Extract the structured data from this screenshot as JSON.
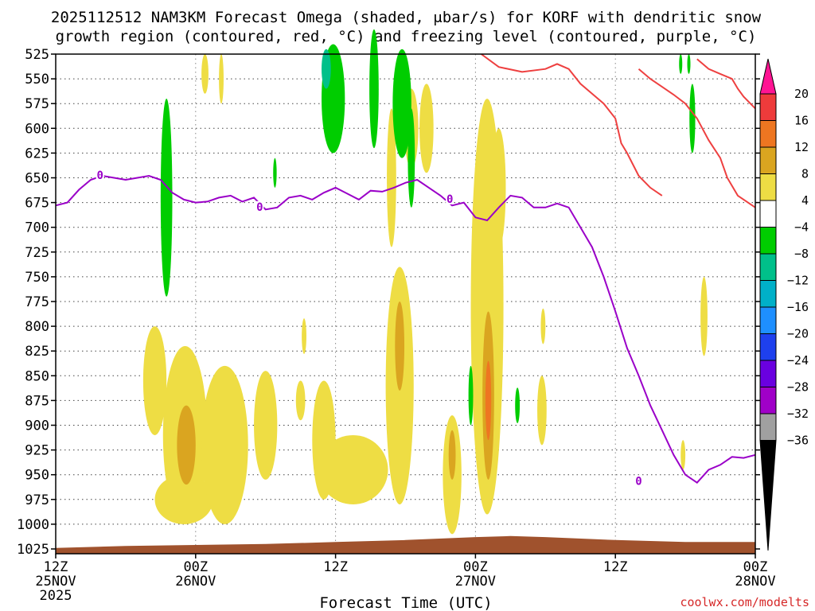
{
  "chart_data": {
    "type": "heatmap",
    "title_line1": "2025112512 NAM3KM Forecast Omega (shaded, μbar/s) for KORF with dendritic snow",
    "title_line2": "growth region (contoured, red, °C) and freezing level (contoured, purple, °C)",
    "xlabel": "Forecast Time (UTC)",
    "credit": "coolwx.com/modelts",
    "x_ticks": [
      {
        "hour": 0,
        "label": "12Z",
        "date": "25NOV",
        "year": "2025"
      },
      {
        "hour": 12,
        "label": "00Z",
        "date": "26NOV",
        "year": ""
      },
      {
        "hour": 24,
        "label": "12Z",
        "date": "",
        "year": ""
      },
      {
        "hour": 36,
        "label": "00Z",
        "date": "27NOV",
        "year": ""
      },
      {
        "hour": 48,
        "label": "12Z",
        "date": "",
        "year": ""
      },
      {
        "hour": 60,
        "label": "00Z",
        "date": "28NOV",
        "year": ""
      }
    ],
    "y_ticks": [
      525,
      550,
      575,
      600,
      625,
      650,
      675,
      700,
      725,
      750,
      775,
      800,
      825,
      850,
      875,
      900,
      925,
      950,
      975,
      1000,
      1025
    ],
    "x_range": [
      0,
      60
    ],
    "y_range_hpa": [
      525,
      1030
    ],
    "colorbar": {
      "labels": [
        "20",
        "16",
        "12",
        "8",
        "4",
        "−4",
        "−8",
        "−12",
        "−16",
        "−20",
        "−24",
        "−28",
        "−32",
        "−36"
      ],
      "colors": [
        "#ff1493",
        "#ee3b3b",
        "#ee7621",
        "#daa520",
        "#eedd44",
        "#ffffff",
        "#00cd00",
        "#00c08a",
        "#00b0c8",
        "#1e8fff",
        "#1e40ee",
        "#6a00e0",
        "#a000c8",
        "#a0a0a0",
        "#000000"
      ]
    },
    "contour_freezing_level_label": "0",
    "freezing_level_0C": [
      [
        0,
        678
      ],
      [
        1,
        675
      ],
      [
        2,
        662
      ],
      [
        3,
        652
      ],
      [
        4,
        648
      ],
      [
        5,
        650
      ],
      [
        6,
        652
      ],
      [
        7,
        650
      ],
      [
        8,
        648
      ],
      [
        9,
        652
      ],
      [
        10,
        665
      ],
      [
        11,
        672
      ],
      [
        12,
        675
      ],
      [
        13,
        674
      ],
      [
        14,
        670
      ],
      [
        15,
        668
      ],
      [
        16,
        674
      ],
      [
        17,
        670
      ],
      [
        18,
        682
      ],
      [
        19,
        680
      ],
      [
        20,
        670
      ],
      [
        21,
        668
      ],
      [
        22,
        672
      ],
      [
        23,
        665
      ],
      [
        24,
        660
      ],
      [
        25,
        666
      ],
      [
        26,
        672
      ],
      [
        27,
        663
      ],
      [
        28,
        664
      ],
      [
        29,
        660
      ],
      [
        30,
        655
      ],
      [
        31,
        652
      ],
      [
        32,
        660
      ],
      [
        33,
        668
      ],
      [
        34,
        678
      ],
      [
        35,
        675
      ],
      [
        36,
        690
      ],
      [
        37,
        693
      ],
      [
        38,
        680
      ],
      [
        39,
        668
      ],
      [
        40,
        670
      ],
      [
        41,
        680
      ],
      [
        42,
        680
      ],
      [
        43,
        676
      ],
      [
        44,
        680
      ],
      [
        45,
        700
      ],
      [
        46,
        720
      ],
      [
        47,
        750
      ],
      [
        48,
        785
      ],
      [
        49,
        822
      ],
      [
        50,
        850
      ],
      [
        51,
        880
      ],
      [
        52,
        905
      ],
      [
        53,
        930
      ],
      [
        54,
        950
      ],
      [
        55,
        958
      ],
      [
        56,
        945
      ],
      [
        57,
        940
      ],
      [
        58,
        932
      ],
      [
        59,
        933
      ],
      [
        60,
        930
      ]
    ],
    "dgz_contours_red": [
      [
        [
          36.5,
          525
        ],
        [
          38,
          538
        ],
        [
          40,
          543
        ],
        [
          42,
          540
        ],
        [
          43,
          535
        ],
        [
          44,
          540
        ],
        [
          45,
          555
        ],
        [
          46,
          565
        ],
        [
          47,
          575
        ],
        [
          48,
          590
        ],
        [
          48.5,
          615
        ],
        [
          49,
          625
        ],
        [
          50,
          648
        ],
        [
          51,
          660
        ],
        [
          52,
          668
        ]
      ],
      [
        [
          50,
          540
        ],
        [
          51,
          550
        ],
        [
          52,
          558
        ],
        [
          53,
          566
        ],
        [
          54,
          575
        ],
        [
          55,
          590
        ],
        [
          56,
          612
        ],
        [
          57,
          630
        ],
        [
          57.6,
          650
        ],
        [
          58.5,
          668
        ],
        [
          60,
          680
        ]
      ],
      [
        [
          55,
          530
        ],
        [
          56,
          540
        ],
        [
          57,
          545
        ],
        [
          58,
          550
        ],
        [
          58.5,
          560
        ],
        [
          59,
          568
        ],
        [
          60,
          580
        ]
      ]
    ],
    "omega_patches": [
      {
        "level": "4",
        "cx": 11.1,
        "cy": 910,
        "rx": 1.9,
        "ry": 90
      },
      {
        "level": "4",
        "cx": 11.0,
        "cy": 975,
        "rx": 2.5,
        "ry": 25
      },
      {
        "level": "8",
        "cx": 11.2,
        "cy": 920,
        "rx": 0.8,
        "ry": 40
      },
      {
        "level": "4",
        "cx": 14.5,
        "cy": 920,
        "rx": 2.0,
        "ry": 80
      },
      {
        "level": "4",
        "cx": 8.5,
        "cy": 855,
        "rx": 1.0,
        "ry": 55
      },
      {
        "level": "4",
        "cx": 18.0,
        "cy": 900,
        "rx": 1.0,
        "ry": 55
      },
      {
        "level": "4",
        "cx": 21.0,
        "cy": 875,
        "rx": 0.4,
        "ry": 20
      },
      {
        "level": "4",
        "cx": 25.5,
        "cy": 945,
        "rx": 3.0,
        "ry": 35
      },
      {
        "level": "4",
        "cx": 23.0,
        "cy": 915,
        "rx": 1.0,
        "ry": 60
      },
      {
        "level": "4",
        "cx": 29.5,
        "cy": 860,
        "rx": 1.2,
        "ry": 120
      },
      {
        "level": "8",
        "cx": 29.5,
        "cy": 820,
        "rx": 0.4,
        "ry": 45
      },
      {
        "level": "4",
        "cx": 34.0,
        "cy": 950,
        "rx": 0.8,
        "ry": 60
      },
      {
        "level": "8",
        "cx": 34.0,
        "cy": 930,
        "rx": 0.3,
        "ry": 25
      },
      {
        "level": "4",
        "cx": 37.0,
        "cy": 780,
        "rx": 1.4,
        "ry": 210
      },
      {
        "level": "4",
        "cx": 38.0,
        "cy": 660,
        "rx": 0.6,
        "ry": 60
      },
      {
        "level": "8",
        "cx": 37.1,
        "cy": 870,
        "rx": 0.5,
        "ry": 85
      },
      {
        "level": "12",
        "cx": 37.1,
        "cy": 875,
        "rx": 0.25,
        "ry": 40
      },
      {
        "level": "4",
        "cx": 28.8,
        "cy": 650,
        "rx": 0.4,
        "ry": 70
      },
      {
        "level": "4",
        "cx": 30.5,
        "cy": 600,
        "rx": 0.6,
        "ry": 40
      },
      {
        "level": "4",
        "cx": 31.8,
        "cy": 600,
        "rx": 0.6,
        "ry": 45
      },
      {
        "level": "4",
        "cx": 41.7,
        "cy": 885,
        "rx": 0.4,
        "ry": 35
      },
      {
        "level": "4",
        "cx": 41.8,
        "cy": 800,
        "rx": 0.2,
        "ry": 18
      },
      {
        "level": "4",
        "cx": 53.8,
        "cy": 930,
        "rx": 0.2,
        "ry": 15
      },
      {
        "level": "4",
        "cx": 55.6,
        "cy": 790,
        "rx": 0.3,
        "ry": 40
      },
      {
        "level": "4",
        "cx": 21.3,
        "cy": 810,
        "rx": 0.2,
        "ry": 18
      },
      {
        "level": "4",
        "cx": 12.8,
        "cy": 545,
        "rx": 0.3,
        "ry": 20
      },
      {
        "level": "4",
        "cx": 14.2,
        "cy": 550,
        "rx": 0.2,
        "ry": 25
      },
      {
        "level": "-4",
        "cx": 9.5,
        "cy": 670,
        "rx": 0.5,
        "ry": 100
      },
      {
        "level": "-4",
        "cx": 18.8,
        "cy": 645,
        "rx": 0.15,
        "ry": 15
      },
      {
        "level": "-4",
        "cx": 23.8,
        "cy": 570,
        "rx": 1.0,
        "ry": 55
      },
      {
        "level": "-8",
        "cx": 23.2,
        "cy": 540,
        "rx": 0.4,
        "ry": 20
      },
      {
        "level": "-4",
        "cx": 27.3,
        "cy": 560,
        "rx": 0.4,
        "ry": 60
      },
      {
        "level": "-4",
        "cx": 29.7,
        "cy": 575,
        "rx": 0.8,
        "ry": 55
      },
      {
        "level": "-4",
        "cx": 30.5,
        "cy": 630,
        "rx": 0.3,
        "ry": 50
      },
      {
        "level": "-4",
        "cx": 35.6,
        "cy": 870,
        "rx": 0.2,
        "ry": 30
      },
      {
        "level": "-4",
        "cx": 39.6,
        "cy": 880,
        "rx": 0.2,
        "ry": 18
      },
      {
        "level": "-4",
        "cx": 54.6,
        "cy": 590,
        "rx": 0.25,
        "ry": 35
      },
      {
        "level": "-4",
        "cx": 53.6,
        "cy": 535,
        "rx": 0.1,
        "ry": 10
      },
      {
        "level": "-4",
        "cx": 54.3,
        "cy": 535,
        "rx": 0.1,
        "ry": 10
      }
    ],
    "terrain_label": "surface"
  }
}
